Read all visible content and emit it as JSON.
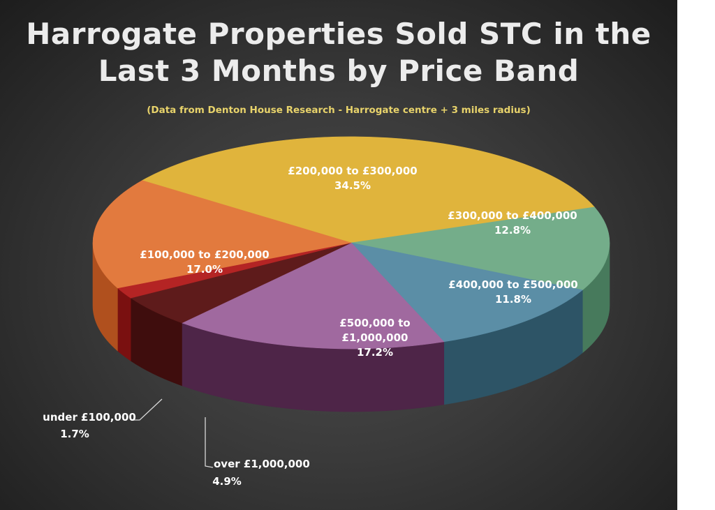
{
  "title_line1": "Harrogate Properties Sold STC in the",
  "title_line2": "Last 3 Months by Price Band",
  "subtitle": "(Data from Denton House Research - Harrogate centre + 3 miles radius)",
  "chart_data": {
    "type": "pie",
    "title": "Harrogate Properties Sold STC in the Last 3 Months by Price Band",
    "subtitle": "(Data from Denton House Research - Harrogate centre + 3 miles radius)",
    "slices": [
      {
        "label_lines": [
          "£200,000 to £300,000"
        ],
        "value_text": "34.5%",
        "value": 34.5,
        "color": "#e0b43c",
        "side": "#a77f22"
      },
      {
        "label_lines": [
          "£300,000 to £400,000"
        ],
        "value_text": "12.8%",
        "value": 12.8,
        "color": "#74ad8a",
        "side": "#477a5c"
      },
      {
        "label_lines": [
          "£400,000 to £500,000"
        ],
        "value_text": "11.8%",
        "value": 11.8,
        "color": "#5b8ea6",
        "side": "#2d5466"
      },
      {
        "label_lines": [
          "£500,000 to",
          "£1,000,000"
        ],
        "value_text": "17.2%",
        "value": 17.2,
        "color": "#a0699f",
        "side": "#4e2548"
      },
      {
        "label_lines": [
          "over £1,000,000"
        ],
        "value_text": "4.9%",
        "value": 4.9,
        "color": "#5e1b1b",
        "side": "#3f0d0d"
      },
      {
        "label_lines": [
          "under £100,000"
        ],
        "value_text": "1.7%",
        "value": 1.7,
        "color": "#b42424",
        "side": "#7a1010"
      },
      {
        "label_lines": [
          "£100,000 to £200,000"
        ],
        "value_text": "17.0%",
        "value": 17.0,
        "color": "#e27a3e",
        "side": "#b0501e"
      }
    ]
  }
}
